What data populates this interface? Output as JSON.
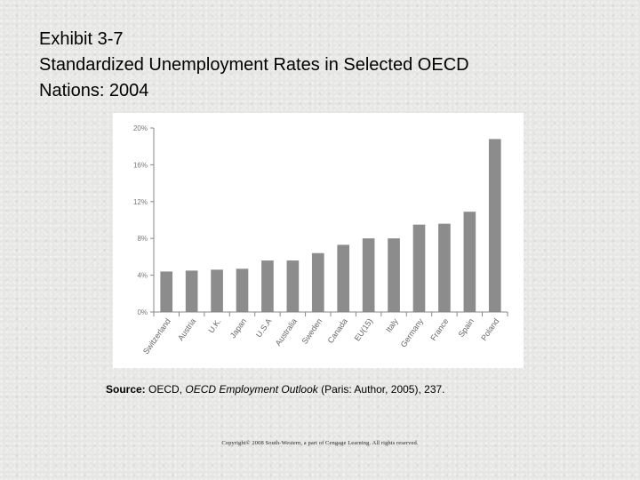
{
  "header": {
    "title_line1": "Exhibit 3-7",
    "title_line2": "Standardized Unemployment Rates in Selected OECD",
    "title_line3": "Nations: 2004"
  },
  "source": {
    "label": "Source:",
    "publisher": " OECD, ",
    "book": "OECD Employment Outlook",
    "rest": " (Paris: Author, 2005), 237."
  },
  "footer": {
    "copyright": "Copyright© 2008 South-Western, a part of Cengage Learning. All rights reserved."
  },
  "chart_data": {
    "type": "bar",
    "categories": [
      "Switzerland",
      "Austria",
      "U.K.",
      "Japan",
      "U.S.A",
      "Australia",
      "Sweden",
      "Canada",
      "EU(15)",
      "Italy",
      "Germany",
      "France",
      "Spain",
      "Poland"
    ],
    "values": [
      4.4,
      4.5,
      4.6,
      4.7,
      5.6,
      5.6,
      6.4,
      7.3,
      8.0,
      8.0,
      9.5,
      9.6,
      10.9,
      18.8
    ],
    "yticks": [
      0,
      4,
      8,
      12,
      16,
      20
    ],
    "ytick_labels": [
      "0%",
      "4%",
      "8%",
      "12%",
      "16%",
      "20%"
    ],
    "ylim": [
      0,
      20
    ],
    "bar_color": "#8c8c8c",
    "grid": false,
    "legend": false
  }
}
